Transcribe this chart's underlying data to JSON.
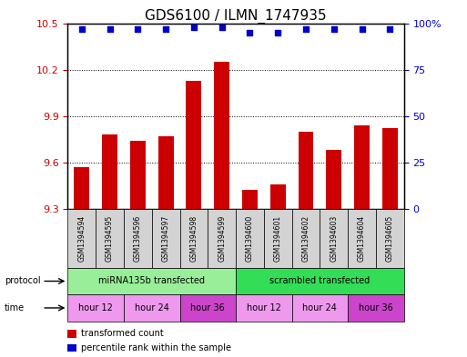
{
  "title": "GDS6100 / ILMN_1747935",
  "samples": [
    "GSM1394594",
    "GSM1394595",
    "GSM1394596",
    "GSM1394597",
    "GSM1394598",
    "GSM1394599",
    "GSM1394600",
    "GSM1394601",
    "GSM1394602",
    "GSM1394603",
    "GSM1394604",
    "GSM1394605"
  ],
  "bar_values": [
    9.57,
    9.78,
    9.74,
    9.77,
    10.13,
    10.25,
    9.42,
    9.46,
    9.8,
    9.68,
    9.84,
    9.82
  ],
  "percentile_values": [
    97,
    97,
    97,
    97,
    98,
    98,
    95,
    95,
    97,
    97,
    97,
    97
  ],
  "ylim_left": [
    9.3,
    10.5
  ],
  "ylim_right": [
    0,
    100
  ],
  "yticks_left": [
    9.3,
    9.6,
    9.9,
    10.2,
    10.5
  ],
  "yticks_right": [
    0,
    25,
    50,
    75,
    100
  ],
  "bar_color": "#cc0000",
  "dot_color": "#0000cc",
  "bar_baseline": 9.3,
  "protocol_groups": [
    {
      "label": "miRNA135b transfected",
      "start": 0,
      "end": 6,
      "color": "#99ee99"
    },
    {
      "label": "scrambled transfected",
      "start": 6,
      "end": 12,
      "color": "#33dd55"
    }
  ],
  "time_groups": [
    {
      "label": "hour 12",
      "start": 0,
      "end": 2,
      "color": "#ee99ee"
    },
    {
      "label": "hour 24",
      "start": 2,
      "end": 4,
      "color": "#ee99ee"
    },
    {
      "label": "hour 36",
      "start": 4,
      "end": 6,
      "color": "#cc44cc"
    },
    {
      "label": "hour 12",
      "start": 6,
      "end": 8,
      "color": "#ee99ee"
    },
    {
      "label": "hour 24",
      "start": 8,
      "end": 10,
      "color": "#ee99ee"
    },
    {
      "label": "hour 36",
      "start": 10,
      "end": 12,
      "color": "#cc44cc"
    }
  ],
  "legend_items": [
    {
      "label": "transformed count",
      "color": "#cc0000"
    },
    {
      "label": "percentile rank within the sample",
      "color": "#0000cc"
    }
  ],
  "sample_box_color": "#d3d3d3",
  "title_fontsize": 11,
  "tick_fontsize": 8,
  "sample_fontsize": 5.5,
  "row_fontsize": 7,
  "legend_fontsize": 7
}
